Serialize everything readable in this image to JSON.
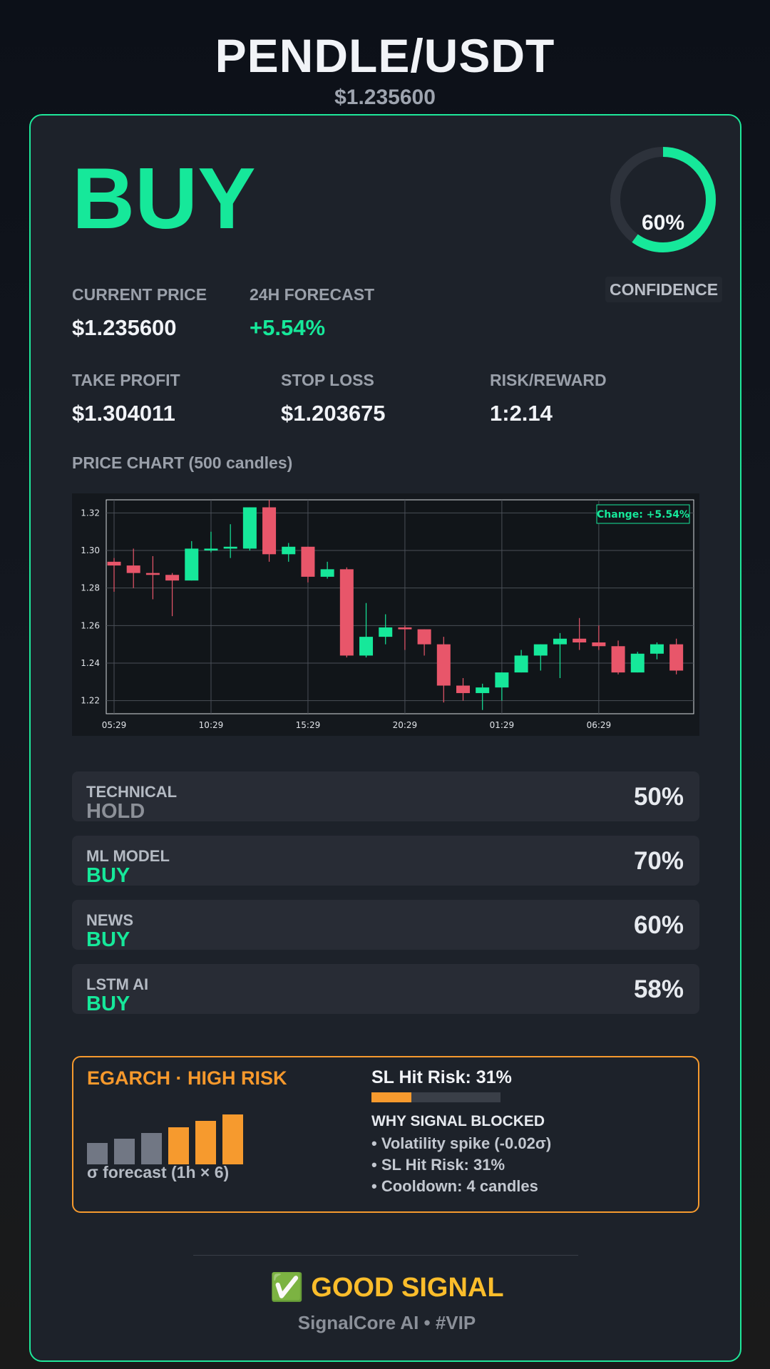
{
  "header": {
    "pair": "PENDLE/USDT",
    "price": "$1.235600"
  },
  "signal": {
    "label": "BUY",
    "color": "#16e89a"
  },
  "confidence": {
    "value": 0.6,
    "text": "60%",
    "label": "CONFIDENCE"
  },
  "metrics": {
    "current_price": {
      "label": "CURRENT PRICE",
      "value": "$1.235600"
    },
    "forecast": {
      "label": "24H FORECAST",
      "value": "+5.54%"
    },
    "take_profit": {
      "label": "TAKE PROFIT",
      "value": "$1.304011"
    },
    "stop_loss": {
      "label": "STOP LOSS",
      "value": "$1.203675"
    },
    "risk_reward": {
      "label": "RISK/REWARD",
      "value": "1:2.14"
    }
  },
  "chart": {
    "title": "PRICE CHART (500 candles)",
    "badge": "Change: +5.54%"
  },
  "chart_data": {
    "type": "candlestick",
    "x_ticks": [
      "05:29",
      "10:29",
      "15:29",
      "20:29",
      "01:29",
      "06:29"
    ],
    "y_ticks": [
      "1.22",
      "1.24",
      "1.26",
      "1.28",
      "1.30",
      "1.32"
    ],
    "ylim": [
      1.213,
      1.327
    ],
    "candles": [
      {
        "o": 1.294,
        "h": 1.296,
        "l": 1.278,
        "c": 1.292
      },
      {
        "o": 1.292,
        "h": 1.301,
        "l": 1.28,
        "c": 1.288
      },
      {
        "o": 1.288,
        "h": 1.297,
        "l": 1.274,
        "c": 1.287
      },
      {
        "o": 1.287,
        "h": 1.288,
        "l": 1.265,
        "c": 1.284
      },
      {
        "o": 1.284,
        "h": 1.305,
        "l": 1.284,
        "c": 1.301
      },
      {
        "o": 1.3,
        "h": 1.31,
        "l": 1.299,
        "c": 1.301
      },
      {
        "o": 1.301,
        "h": 1.314,
        "l": 1.296,
        "c": 1.302
      },
      {
        "o": 1.301,
        "h": 1.323,
        "l": 1.3,
        "c": 1.323
      },
      {
        "o": 1.323,
        "h": 1.327,
        "l": 1.294,
        "c": 1.298
      },
      {
        "o": 1.298,
        "h": 1.304,
        "l": 1.294,
        "c": 1.302
      },
      {
        "o": 1.302,
        "h": 1.302,
        "l": 1.283,
        "c": 1.286
      },
      {
        "o": 1.286,
        "h": 1.294,
        "l": 1.285,
        "c": 1.29
      },
      {
        "o": 1.29,
        "h": 1.291,
        "l": 1.243,
        "c": 1.244
      },
      {
        "o": 1.244,
        "h": 1.272,
        "l": 1.243,
        "c": 1.254
      },
      {
        "o": 1.254,
        "h": 1.266,
        "l": 1.25,
        "c": 1.259
      },
      {
        "o": 1.259,
        "h": 1.26,
        "l": 1.247,
        "c": 1.258
      },
      {
        "o": 1.258,
        "h": 1.258,
        "l": 1.244,
        "c": 1.25
      },
      {
        "o": 1.25,
        "h": 1.254,
        "l": 1.219,
        "c": 1.228
      },
      {
        "o": 1.228,
        "h": 1.232,
        "l": 1.22,
        "c": 1.224
      },
      {
        "o": 1.224,
        "h": 1.229,
        "l": 1.215,
        "c": 1.227
      },
      {
        "o": 1.227,
        "h": 1.235,
        "l": 1.22,
        "c": 1.235
      },
      {
        "o": 1.235,
        "h": 1.247,
        "l": 1.235,
        "c": 1.244
      },
      {
        "o": 1.244,
        "h": 1.25,
        "l": 1.236,
        "c": 1.25
      },
      {
        "o": 1.25,
        "h": 1.256,
        "l": 1.232,
        "c": 1.253
      },
      {
        "o": 1.253,
        "h": 1.264,
        "l": 1.247,
        "c": 1.251
      },
      {
        "o": 1.251,
        "h": 1.26,
        "l": 1.247,
        "c": 1.249
      },
      {
        "o": 1.249,
        "h": 1.252,
        "l": 1.234,
        "c": 1.235
      },
      {
        "o": 1.235,
        "h": 1.246,
        "l": 1.235,
        "c": 1.245
      },
      {
        "o": 1.245,
        "h": 1.251,
        "l": 1.242,
        "c": 1.25
      },
      {
        "o": 1.25,
        "h": 1.253,
        "l": 1.234,
        "c": 1.236
      }
    ],
    "up_color": "#16e89a",
    "down_color": "#e8566a",
    "grid": true
  },
  "components": [
    {
      "name": "TECHNICAL",
      "signal": "HOLD",
      "signal_color": "#8c9098",
      "pct": "50%"
    },
    {
      "name": "ML MODEL",
      "signal": "BUY",
      "signal_color": "#16e89a",
      "pct": "70%"
    },
    {
      "name": "NEWS",
      "signal": "BUY",
      "signal_color": "#16e89a",
      "pct": "60%"
    },
    {
      "name": "LSTM AI",
      "signal": "BUY",
      "signal_color": "#16e89a",
      "pct": "58%"
    }
  ],
  "risk": {
    "title": "EGARCH · HIGH RISK",
    "sigma_label": "σ forecast (1h × 6)",
    "sigma_bars": [
      {
        "value": 0.38,
        "color": "#717784"
      },
      {
        "value": 0.45,
        "color": "#717784"
      },
      {
        "value": 0.55,
        "color": "#717784"
      },
      {
        "value": 0.65,
        "color": "#f69a2e"
      },
      {
        "value": 0.76,
        "color": "#f69a2e"
      },
      {
        "value": 0.88,
        "color": "#f69a2e"
      }
    ],
    "sl_hit_title": "SL Hit Risk: 31%",
    "sl_hit_value": 0.31,
    "why_title": "WHY SIGNAL BLOCKED",
    "why_items": [
      "• Volatility spike (-0.02σ)",
      "• SL Hit Risk: 31%",
      "• Cooldown: 4 candles"
    ]
  },
  "footer": {
    "quality": "✅ GOOD SIGNAL",
    "brand": "SignalCore AI • #VIP"
  }
}
